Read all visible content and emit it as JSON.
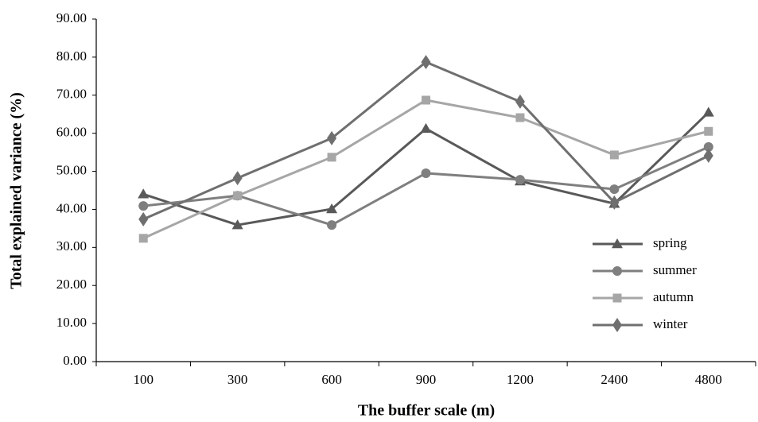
{
  "chart_data": {
    "type": "line",
    "x_label": "The buffer scale (m)",
    "y_label": "Total explained variance (%)",
    "categories": [
      "100",
      "300",
      "600",
      "900",
      "1200",
      "2400",
      "4800"
    ],
    "series": [
      {
        "name": "spring",
        "color": "#595959",
        "marker": "triangle",
        "values": [
          44.0,
          35.9,
          40.1,
          61.2,
          47.4,
          41.5,
          65.5
        ]
      },
      {
        "name": "summer",
        "color": "#7f7f7f",
        "marker": "circle",
        "values": [
          40.9,
          43.6,
          35.9,
          49.5,
          47.8,
          45.3,
          56.4
        ]
      },
      {
        "name": "autumn",
        "color": "#a6a6a6",
        "marker": "square",
        "values": [
          32.4,
          43.6,
          53.7,
          68.7,
          64.1,
          54.3,
          60.5
        ]
      },
      {
        "name": "winter",
        "color": "#6f6f6f",
        "marker": "diamond",
        "values": [
          37.4,
          48.2,
          58.7,
          78.7,
          68.3,
          41.8,
          54.1
        ]
      }
    ],
    "ylim": [
      0,
      90
    ],
    "yticks": [
      {
        "value": 0,
        "label": "0.00"
      },
      {
        "value": 10,
        "label": "10.00"
      },
      {
        "value": 20,
        "label": "20.00"
      },
      {
        "value": 30,
        "label": "30.00"
      },
      {
        "value": 40,
        "label": "40.00"
      },
      {
        "value": 50,
        "label": "50.00"
      },
      {
        "value": 60,
        "label": "60.00"
      },
      {
        "value": 70,
        "label": "70.00"
      },
      {
        "value": 80,
        "label": "80.00"
      },
      {
        "value": 90,
        "label": "90.00"
      }
    ],
    "grid": false,
    "legend": "lower right"
  }
}
